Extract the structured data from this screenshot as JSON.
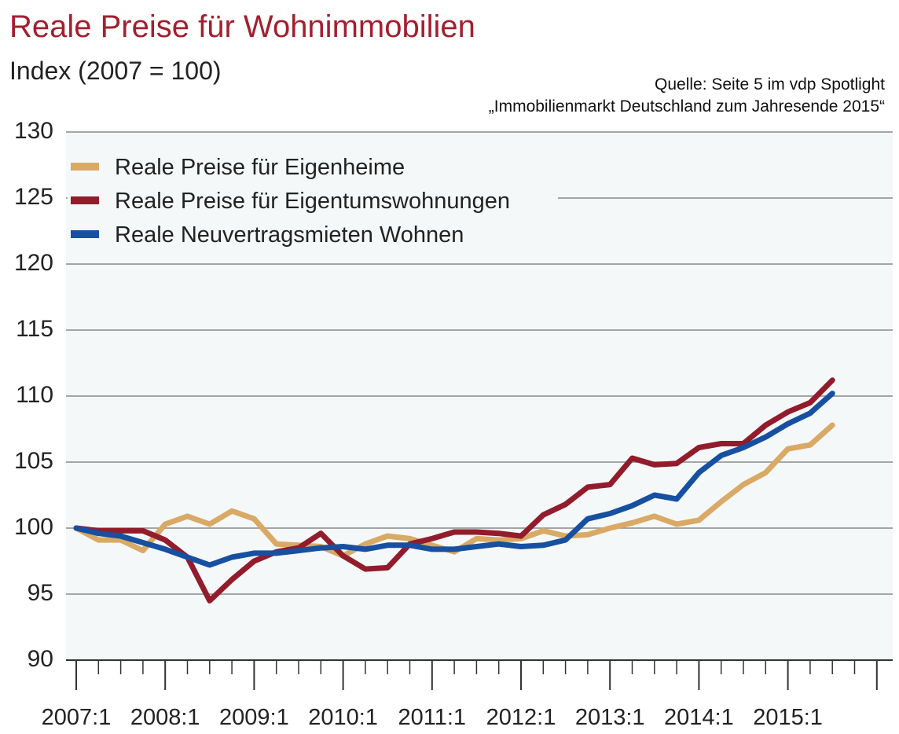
{
  "chart_title": "Reale Preise für Wohnimmobilien",
  "chart_subtitle": "Index (2007 = 100)",
  "source": {
    "line1": "Quelle: Seite 5 im vdp Spotlight",
    "line2": "„Immobilienmarkt Deutschland zum Jahresende 2015“"
  },
  "colors": {
    "plot_background": "#f5f8f8",
    "grid": "#8a8a8a",
    "eigenheime": "#d9a966",
    "eigentumswohnungen": "#921c2b",
    "mieten": "#1750a0",
    "title": "#a31f2e"
  },
  "chart_data": {
    "type": "line",
    "title": "Reale Preise für Wohnimmobilien",
    "subtitle": "Index (2007 = 100)",
    "xlabel": "",
    "ylabel": "",
    "ylim": [
      90,
      130
    ],
    "yticks": [
      90,
      95,
      100,
      105,
      110,
      115,
      120,
      125,
      130
    ],
    "grid": "horizontal",
    "legend_position": "top-left",
    "x_tick_labels": [
      "2007:1",
      "2008:1",
      "2009:1",
      "2010:1",
      "2011:1",
      "2012:1",
      "2013:1",
      "2014:1",
      "2015:1"
    ],
    "x": [
      "2007:1",
      "2007:2",
      "2007:3",
      "2007:4",
      "2008:1",
      "2008:2",
      "2008:3",
      "2008:4",
      "2009:1",
      "2009:2",
      "2009:3",
      "2009:4",
      "2010:1",
      "2010:2",
      "2010:3",
      "2010:4",
      "2011:1",
      "2011:2",
      "2011:3",
      "2011:4",
      "2012:1",
      "2012:2",
      "2012:3",
      "2012:4",
      "2013:1",
      "2013:2",
      "2013:3",
      "2013:4",
      "2014:1",
      "2014:2",
      "2014:3",
      "2014:4",
      "2015:1",
      "2015:2",
      "2015:3"
    ],
    "series": [
      {
        "name": "Reale Preise für Eigenheime",
        "color": "#d9a966",
        "values": [
          100.0,
          99.1,
          99.1,
          98.3,
          100.3,
          100.9,
          100.3,
          101.3,
          100.7,
          98.8,
          98.7,
          98.6,
          97.9,
          98.8,
          99.4,
          99.2,
          98.7,
          98.2,
          99.2,
          99.1,
          99.2,
          99.8,
          99.4,
          99.5,
          100.0,
          100.4,
          100.9,
          100.3,
          100.6,
          102.0,
          103.3,
          104.2,
          106.0,
          106.3,
          107.8
        ]
      },
      {
        "name": "Reale Preise für Eigentumswohnungen",
        "color": "#921c2b",
        "values": [
          100.0,
          99.8,
          99.8,
          99.8,
          99.1,
          97.8,
          94.5,
          96.1,
          97.5,
          98.2,
          98.5,
          99.6,
          97.9,
          96.9,
          97.0,
          98.8,
          99.2,
          99.7,
          99.7,
          99.6,
          99.4,
          101.0,
          101.8,
          103.1,
          103.3,
          105.3,
          104.8,
          104.9,
          106.1,
          106.4,
          106.4,
          107.8,
          108.8,
          109.5,
          111.2
        ]
      },
      {
        "name": "Reale Neuvertragsmieten Wohnen",
        "color": "#1750a0",
        "values": [
          100.0,
          99.6,
          99.4,
          98.9,
          98.4,
          97.8,
          97.2,
          97.8,
          98.1,
          98.1,
          98.3,
          98.5,
          98.6,
          98.4,
          98.7,
          98.7,
          98.4,
          98.4,
          98.6,
          98.8,
          98.6,
          98.7,
          99.1,
          100.7,
          101.1,
          101.7,
          102.5,
          102.2,
          104.2,
          105.5,
          106.1,
          106.9,
          107.9,
          108.7,
          110.2
        ]
      }
    ]
  }
}
